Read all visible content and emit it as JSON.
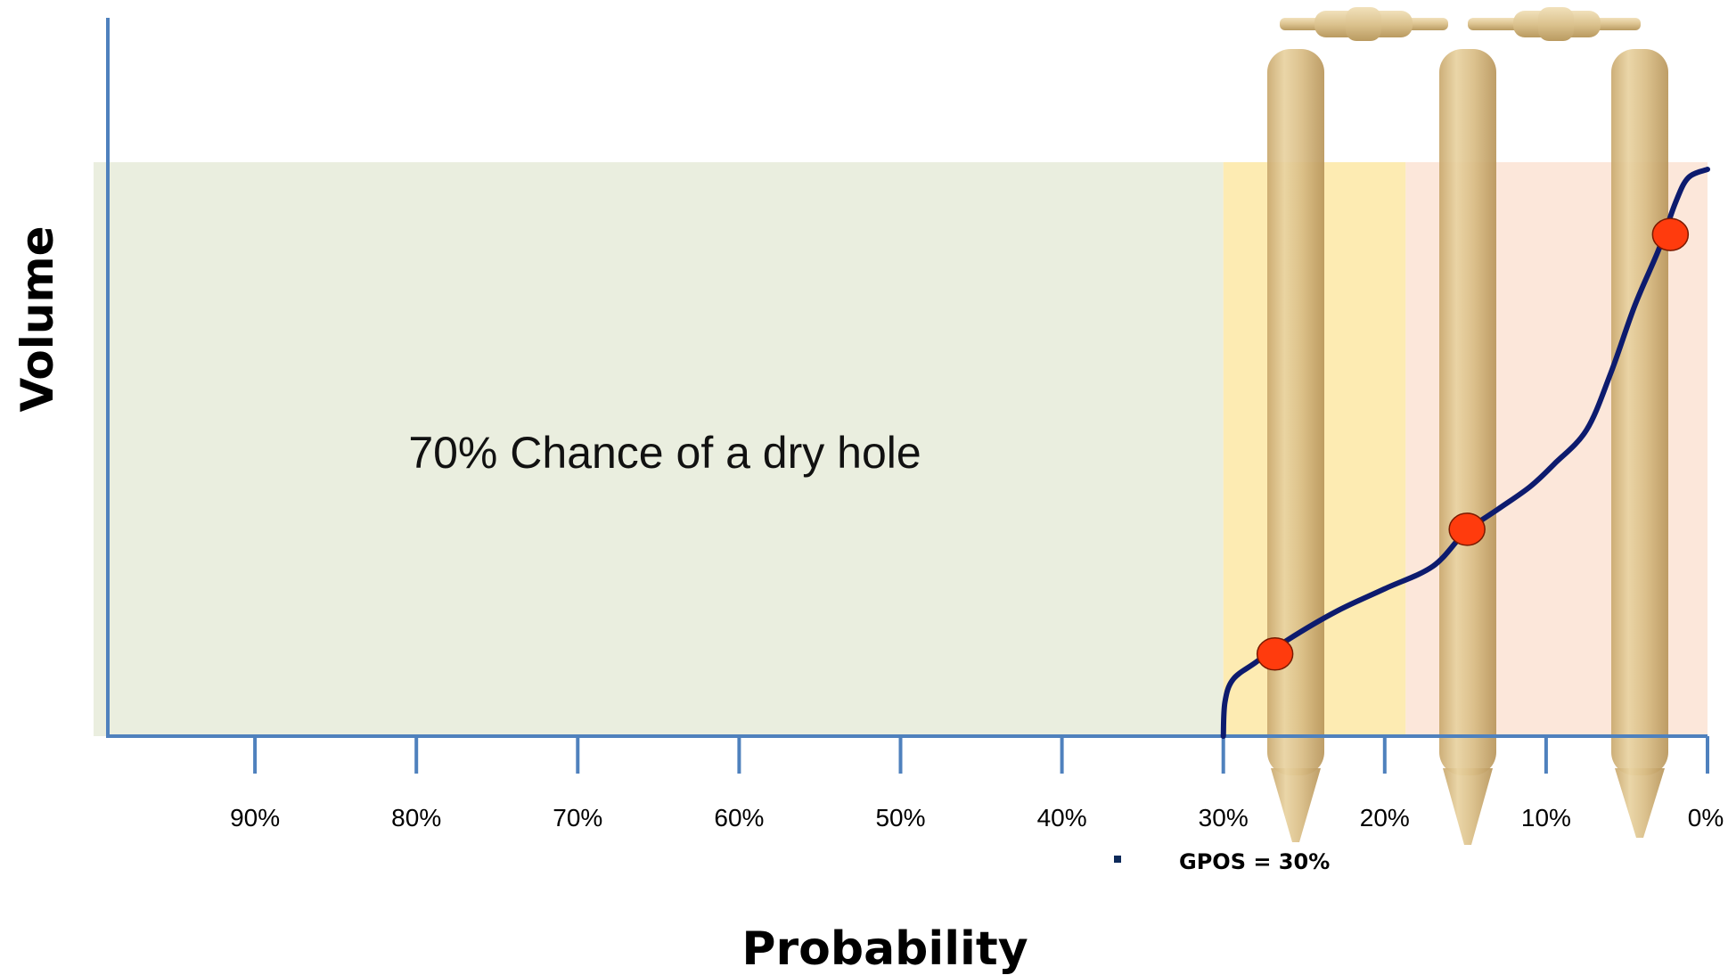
{
  "chart_data": {
    "type": "line",
    "title": "",
    "xlabel": "Probability",
    "ylabel": "Volume",
    "x_axis_reversed": true,
    "xlim": [
      100,
      0
    ],
    "x_ticks": [
      {
        "value": 90,
        "label": "90%"
      },
      {
        "value": 80,
        "label": "80%"
      },
      {
        "value": 70,
        "label": "70%"
      },
      {
        "value": 60,
        "label": "60%"
      },
      {
        "value": 50,
        "label": "50%"
      },
      {
        "value": 40,
        "label": "40%"
      },
      {
        "value": 30,
        "label": "30%"
      },
      {
        "value": 20,
        "label": "20%"
      },
      {
        "value": 10,
        "label": "10%"
      },
      {
        "value": 0,
        "label": "0%"
      }
    ],
    "grid": false,
    "regions": [
      {
        "from": 100,
        "to": 30,
        "color": "#eaeedf"
      },
      {
        "from": 30,
        "to": 18.7,
        "color": "#fdebb2"
      },
      {
        "from": 18.7,
        "to": 0,
        "color": "#fce7da"
      }
    ],
    "series": [
      {
        "color": "#0d1b6e",
        "points": [
          [
            30,
            0
          ],
          [
            29.9,
            0.06
          ],
          [
            29.4,
            0.1
          ],
          [
            28,
            0.13
          ],
          [
            26,
            0.17
          ],
          [
            23,
            0.22
          ],
          [
            20,
            0.26
          ],
          [
            17,
            0.3
          ],
          [
            15,
            0.36
          ],
          [
            13,
            0.4
          ],
          [
            11,
            0.44
          ],
          [
            9.5,
            0.48
          ],
          [
            7.5,
            0.54
          ],
          [
            6,
            0.64
          ],
          [
            4.5,
            0.76
          ],
          [
            3,
            0.86
          ],
          [
            2,
            0.94
          ],
          [
            1.2,
            0.985
          ],
          [
            0,
            1.0
          ]
        ]
      }
    ],
    "highlight_points": [
      {
        "x": 26.8,
        "y": 0.145,
        "color": "#ff3b0d"
      },
      {
        "x": 14.9,
        "y": 0.365,
        "color": "#ff3b0d"
      },
      {
        "x": 2.3,
        "y": 0.885,
        "color": "#ff3b0d"
      }
    ],
    "annotations": [
      {
        "text": "70% Chance of a dry hole"
      }
    ],
    "legend": {
      "placement": "bottom",
      "entries": [
        "GPOS = 30%"
      ],
      "marker_color": "#0d2a5a"
    },
    "axis_color": "#4f81bd"
  }
}
